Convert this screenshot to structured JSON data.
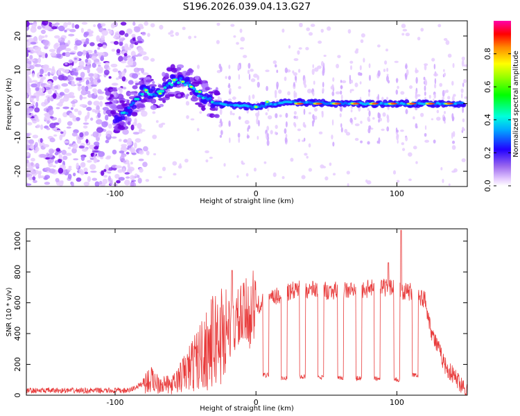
{
  "title": "S196.2026.039.04.13.G27",
  "chart_data": [
    {
      "type": "heatmap",
      "name": "spectrogram",
      "xlabel": "Height of straight line (km)",
      "ylabel": "Frequency (Hz)",
      "xlim": [
        -163,
        150
      ],
      "ylim": [
        -24.5,
        24.5
      ],
      "x_ticks": [
        -100,
        0,
        100
      ],
      "y_ticks": [
        -20,
        -10,
        0,
        10,
        20
      ],
      "colorbar": {
        "label": "Normalized spectral amplitude",
        "range": [
          0.0,
          1.0
        ],
        "ticks": [
          0.0,
          0.2,
          0.4,
          0.6,
          0.8
        ]
      },
      "ridge": [
        {
          "x": -100,
          "f": -4.5
        },
        {
          "x": -90,
          "f": -2
        },
        {
          "x": -80,
          "f": 4
        },
        {
          "x": -70,
          "f": 3
        },
        {
          "x": -58,
          "f": 7
        },
        {
          "x": -48,
          "f": 6
        },
        {
          "x": -40,
          "f": 3
        },
        {
          "x": -30,
          "f": 0
        },
        {
          "x": 0,
          "f": -1
        },
        {
          "x": 20,
          "f": 0.5
        },
        {
          "x": 60,
          "f": 0
        },
        {
          "x": 100,
          "f": 0
        },
        {
          "x": 150,
          "f": 0
        }
      ]
    },
    {
      "type": "line",
      "name": "snr",
      "xlabel": "Height of straight line (km)",
      "ylabel": "SNR (10 * v/v)",
      "xlim": [
        -163,
        150
      ],
      "ylim": [
        0,
        1080
      ],
      "x_ticks": [
        -100,
        0,
        100
      ],
      "y_ticks": [
        0,
        200,
        400,
        600,
        800,
        1000
      ],
      "color": "#e83a3a",
      "envelope": [
        {
          "x": -163,
          "y": 30
        },
        {
          "x": -90,
          "y": 30
        },
        {
          "x": -75,
          "y": 100
        },
        {
          "x": -60,
          "y": 60
        },
        {
          "x": -50,
          "y": 150
        },
        {
          "x": -40,
          "y": 250
        },
        {
          "x": -30,
          "y": 350
        },
        {
          "x": -20,
          "y": 430
        },
        {
          "x": -10,
          "y": 500
        },
        {
          "x": 0,
          "y": 580
        },
        {
          "x": 10,
          "y": 620
        },
        {
          "x": 20,
          "y": 660
        },
        {
          "x": 30,
          "y": 690
        },
        {
          "x": 50,
          "y": 680
        },
        {
          "x": 70,
          "y": 680
        },
        {
          "x": 90,
          "y": 700
        },
        {
          "x": 110,
          "y": 670
        },
        {
          "x": 120,
          "y": 620
        },
        {
          "x": 125,
          "y": 400
        },
        {
          "x": 135,
          "y": 180
        },
        {
          "x": 150,
          "y": 30
        }
      ],
      "dropouts": [
        {
          "x_start": 5,
          "x_end": 9,
          "y": 130
        },
        {
          "x_start": 18,
          "x_end": 22,
          "y": 110
        },
        {
          "x_start": 31,
          "x_end": 35,
          "y": 120
        },
        {
          "x_start": 44,
          "x_end": 48,
          "y": 115
        },
        {
          "x_start": 58,
          "x_end": 62,
          "y": 110
        },
        {
          "x_start": 71,
          "x_end": 75,
          "y": 110
        },
        {
          "x_start": 84,
          "x_end": 88,
          "y": 110
        },
        {
          "x_start": 98,
          "x_end": 102,
          "y": 100
        },
        {
          "x_start": 111,
          "x_end": 115,
          "y": 130
        }
      ],
      "spikes": [
        {
          "x": -17,
          "y": 810
        },
        {
          "x": 94,
          "y": 860
        },
        {
          "x": 103,
          "y": 1070
        }
      ]
    }
  ]
}
